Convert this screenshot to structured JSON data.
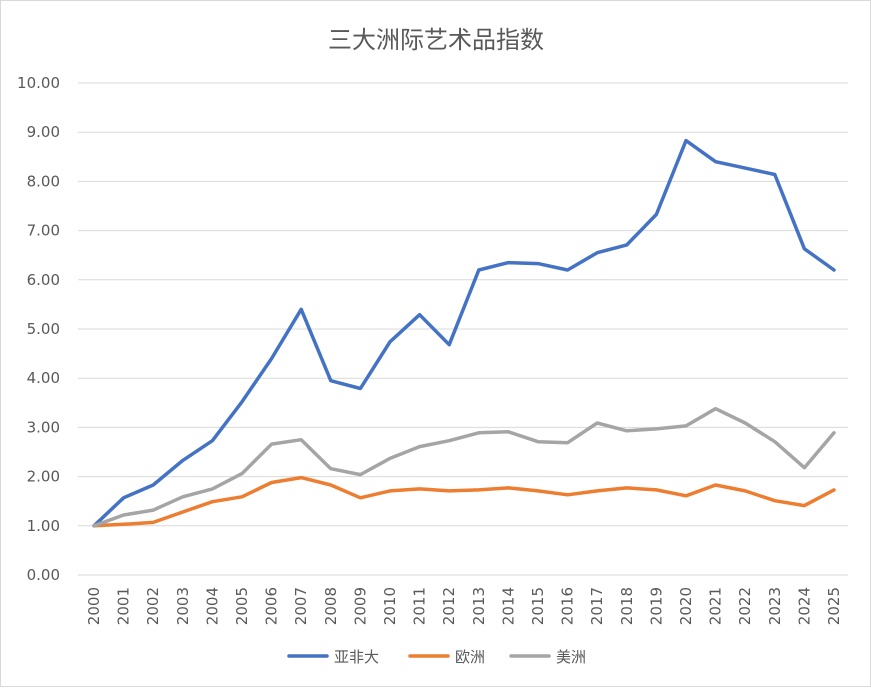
{
  "chart_data": {
    "type": "line",
    "title": "三大洲际艺术品指数",
    "xlabel": "",
    "ylabel": "",
    "ylim": [
      0,
      10
    ],
    "y_ticks": [
      "0.00",
      "1.00",
      "2.00",
      "3.00",
      "4.00",
      "5.00",
      "6.00",
      "7.00",
      "8.00",
      "9.00",
      "10.00"
    ],
    "x": [
      "2000",
      "2001",
      "2002",
      "2003",
      "2004",
      "2005",
      "2006",
      "2007",
      "2008",
      "2009",
      "2010",
      "2011",
      "2012",
      "2013",
      "2014",
      "2015",
      "2016",
      "2017",
      "2018",
      "2019",
      "2020",
      "2021",
      "2022",
      "2023",
      "2024",
      "2025"
    ],
    "grid": "horizontal",
    "legend_position": "bottom",
    "series": [
      {
        "name": "亚非大",
        "color": "#4472c4",
        "values": [
          1.0,
          1.57,
          1.83,
          2.33,
          2.73,
          3.52,
          4.4,
          5.4,
          3.95,
          3.79,
          4.74,
          5.29,
          4.68,
          6.2,
          6.35,
          6.33,
          6.2,
          6.55,
          6.71,
          7.33,
          8.83,
          8.4,
          8.27,
          8.14,
          6.63,
          6.2
        ]
      },
      {
        "name": "欧洲",
        "color": "#ed7d31",
        "values": [
          1.0,
          1.03,
          1.07,
          1.28,
          1.49,
          1.59,
          1.88,
          1.98,
          1.83,
          1.57,
          1.71,
          1.75,
          1.71,
          1.73,
          1.77,
          1.71,
          1.63,
          1.71,
          1.77,
          1.73,
          1.61,
          1.83,
          1.71,
          1.51,
          1.41,
          1.73
        ]
      },
      {
        "name": "美洲",
        "color": "#a5a5a5",
        "values": [
          1.0,
          1.22,
          1.32,
          1.59,
          1.75,
          2.06,
          2.66,
          2.75,
          2.16,
          2.04,
          2.37,
          2.61,
          2.73,
          2.89,
          2.91,
          2.71,
          2.69,
          3.09,
          2.93,
          2.97,
          3.03,
          3.38,
          3.09,
          2.71,
          2.18,
          2.89
        ]
      }
    ]
  }
}
